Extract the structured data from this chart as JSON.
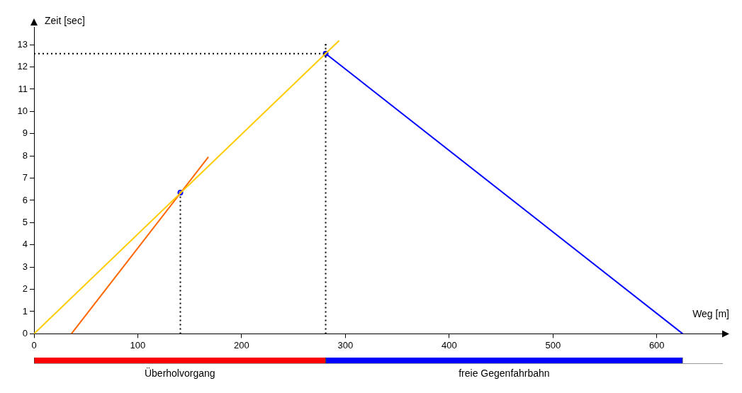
{
  "chart_data": [
    {
      "type": "line",
      "xlabel": "Weg [m]",
      "ylabel": "Zeit [sec]",
      "xlim": [
        0,
        663
      ],
      "ylim": [
        0,
        13.8
      ],
      "xticks": [
        0,
        100,
        200,
        300,
        400,
        500,
        600
      ],
      "yticks": [
        0,
        1,
        2,
        3,
        4,
        5,
        6,
        7,
        8,
        9,
        10,
        11,
        12,
        13
      ],
      "grid": false,
      "legend": false,
      "series": [
        {
          "color": "#ffcc00",
          "x": [
            0,
            294
          ],
          "values": [
            0,
            13.19
          ]
        },
        {
          "color": "#ff6600",
          "x": [
            36,
            168
          ],
          "values": [
            0,
            7.95
          ]
        },
        {
          "color": "#0000ff",
          "x": [
            281,
            625
          ],
          "values": [
            12.6,
            0
          ]
        },
        {
          "line_style": "dotted",
          "color": "#000000",
          "x": [
            141,
            141
          ],
          "values": [
            0,
            6.35
          ]
        },
        {
          "line_style": "dotted",
          "color": "#000000",
          "x": [
            281,
            281
          ],
          "values": [
            0,
            13
          ]
        },
        {
          "line_style": "dotted",
          "color": "#000000",
          "x": [
            0,
            281
          ],
          "values": [
            12.6,
            12.6
          ]
        },
        {
          "type": "scatter",
          "marker": "circle",
          "color": "#0000ff",
          "x": [
            141,
            281
          ],
          "values": [
            6.35,
            12.6
          ]
        }
      ]
    },
    {
      "type": "bar",
      "orientation": "horizontal",
      "stacked": true,
      "relative": false,
      "tick_labels": false,
      "xlim": [
        0,
        663
      ],
      "categories": [
        null
      ],
      "series": [
        {
          "color": "#ff0000",
          "values": [
            281
          ]
        },
        {
          "color": "#0000ff",
          "values": [
            344
          ]
        }
      ],
      "annotations": [
        "Überholvorgang",
        "freie Gegenfahrbahn"
      ]
    }
  ]
}
